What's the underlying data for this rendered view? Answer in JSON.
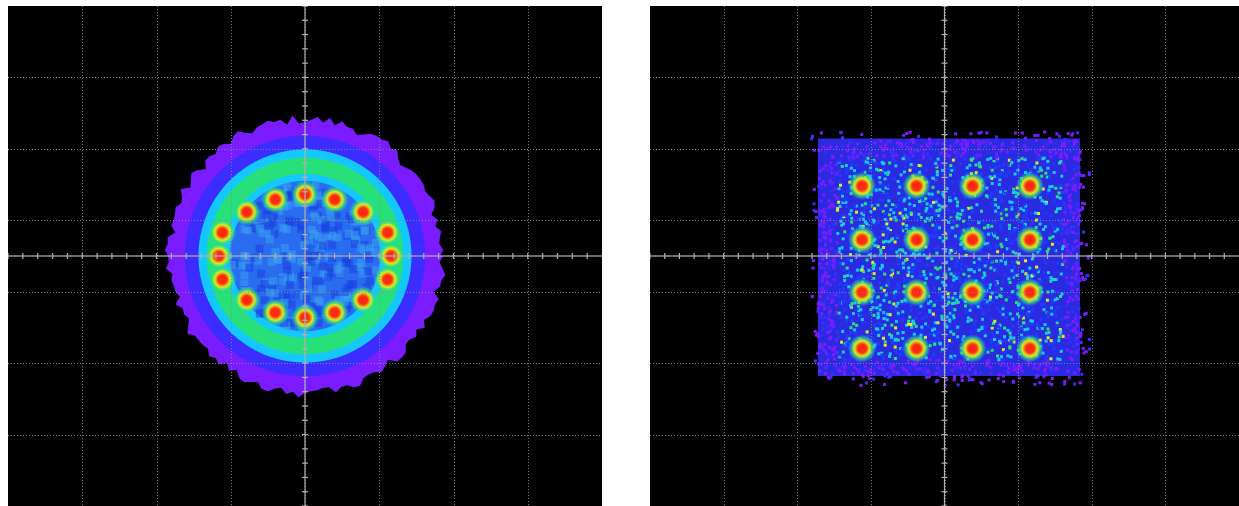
{
  "chart_data": [
    {
      "type": "scatter",
      "kind": "constellation-density",
      "constellation": "ring",
      "grid": true,
      "xlim": [
        -1,
        1
      ],
      "ylim": [
        -1,
        1
      ],
      "divisions": {
        "x": 8,
        "y": 7
      },
      "colormap": [
        "#7a1cff",
        "#1f3bff",
        "#12c8ff",
        "#28e07a",
        "#d8f020",
        "#ff2a10"
      ],
      "cloud_radius": 0.46,
      "points": [
        {
          "x": 0.0,
          "y": 0.247
        },
        {
          "x": 0.1,
          "y": 0.226
        },
        {
          "x": 0.196,
          "y": 0.176
        },
        {
          "x": 0.278,
          "y": 0.094
        },
        {
          "x": 0.29,
          "y": 0.0
        },
        {
          "x": 0.278,
          "y": -0.094
        },
        {
          "x": 0.196,
          "y": -0.176
        },
        {
          "x": 0.1,
          "y": -0.226
        },
        {
          "x": 0.0,
          "y": -0.247
        },
        {
          "x": -0.1,
          "y": -0.226
        },
        {
          "x": -0.196,
          "y": -0.176
        },
        {
          "x": -0.278,
          "y": -0.094
        },
        {
          "x": -0.29,
          "y": 0.0
        },
        {
          "x": -0.278,
          "y": 0.094
        },
        {
          "x": -0.196,
          "y": 0.176
        },
        {
          "x": -0.1,
          "y": 0.226
        }
      ]
    },
    {
      "type": "scatter",
      "kind": "constellation-density",
      "constellation": "16-QAM",
      "grid": true,
      "xlim": [
        -1,
        1
      ],
      "ylim": [
        -1,
        1
      ],
      "divisions": {
        "x": 8,
        "y": 7
      },
      "colormap": [
        "#7a1cff",
        "#1f3bff",
        "#12c8ff",
        "#28e07a",
        "#d8f020",
        "#ff2a10"
      ],
      "cloud_extent": {
        "x": [
          -0.43,
          0.46
        ],
        "y": [
          -0.48,
          0.47
        ]
      },
      "points": [
        {
          "x": -0.28,
          "y": 0.28
        },
        {
          "x": -0.095,
          "y": 0.28
        },
        {
          "x": 0.095,
          "y": 0.28
        },
        {
          "x": 0.29,
          "y": 0.28
        },
        {
          "x": -0.28,
          "y": 0.065
        },
        {
          "x": -0.095,
          "y": 0.065
        },
        {
          "x": 0.095,
          "y": 0.065
        },
        {
          "x": 0.29,
          "y": 0.065
        },
        {
          "x": -0.28,
          "y": -0.145
        },
        {
          "x": -0.095,
          "y": -0.145
        },
        {
          "x": 0.095,
          "y": -0.145
        },
        {
          "x": 0.29,
          "y": -0.145
        },
        {
          "x": -0.28,
          "y": -0.37
        },
        {
          "x": -0.095,
          "y": -0.37
        },
        {
          "x": 0.095,
          "y": -0.37
        },
        {
          "x": 0.29,
          "y": -0.37
        }
      ]
    }
  ]
}
